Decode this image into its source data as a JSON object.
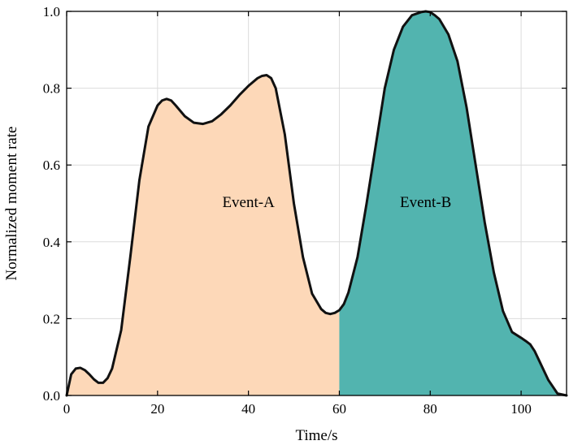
{
  "chart_data": {
    "type": "area",
    "title": "",
    "xlabel": "Time/s",
    "ylabel": "Normalized moment rate",
    "xlim": [
      0,
      110
    ],
    "ylim": [
      0,
      1.0
    ],
    "xticks": [
      0,
      20,
      40,
      60,
      80,
      100
    ],
    "yticks": [
      0.0,
      0.2,
      0.4,
      0.6,
      0.8,
      1.0
    ],
    "xtick_labels": [
      "0",
      "20",
      "40",
      "60",
      "80",
      "100"
    ],
    "ytick_labels": [
      "0.0",
      "0.2",
      "0.4",
      "0.6",
      "0.8",
      "1.0"
    ],
    "grid": true,
    "boundary_x": 60,
    "x": [
      0,
      1,
      2,
      3,
      4,
      5,
      6,
      7,
      8,
      9,
      10,
      12,
      14,
      16,
      18,
      20,
      21,
      22,
      23,
      24,
      26,
      28,
      30,
      32,
      34,
      36,
      38,
      40,
      42,
      43,
      44,
      45,
      46,
      48,
      50,
      52,
      54,
      56,
      57,
      58,
      59,
      60,
      61,
      62,
      64,
      66,
      68,
      70,
      72,
      74,
      76,
      78,
      79,
      80,
      81,
      82,
      84,
      86,
      88,
      90,
      92,
      94,
      96,
      98,
      100,
      101,
      102,
      103,
      104,
      106,
      108,
      110
    ],
    "y": [
      0.0,
      0.055,
      0.07,
      0.072,
      0.066,
      0.055,
      0.042,
      0.033,
      0.033,
      0.045,
      0.07,
      0.17,
      0.36,
      0.56,
      0.7,
      0.755,
      0.768,
      0.772,
      0.768,
      0.755,
      0.727,
      0.71,
      0.707,
      0.714,
      0.732,
      0.755,
      0.782,
      0.806,
      0.826,
      0.832,
      0.834,
      0.826,
      0.8,
      0.68,
      0.5,
      0.36,
      0.265,
      0.225,
      0.215,
      0.212,
      0.215,
      0.222,
      0.238,
      0.268,
      0.36,
      0.5,
      0.65,
      0.8,
      0.9,
      0.96,
      0.99,
      0.998,
      1.0,
      0.998,
      0.99,
      0.98,
      0.94,
      0.87,
      0.75,
      0.6,
      0.45,
      0.32,
      0.22,
      0.165,
      0.15,
      0.142,
      0.133,
      0.115,
      0.09,
      0.04,
      0.005,
      0.0
    ],
    "series": [
      {
        "name": "Event-A",
        "color": "#FDD8B8"
      },
      {
        "name": "Event-B",
        "color": "#52B4AF"
      }
    ],
    "annotations": [
      {
        "text": "Event-A",
        "x": 40,
        "y": 0.49
      },
      {
        "text": "Event-B",
        "x": 79,
        "y": 0.49
      }
    ],
    "line_color": "#111111"
  }
}
